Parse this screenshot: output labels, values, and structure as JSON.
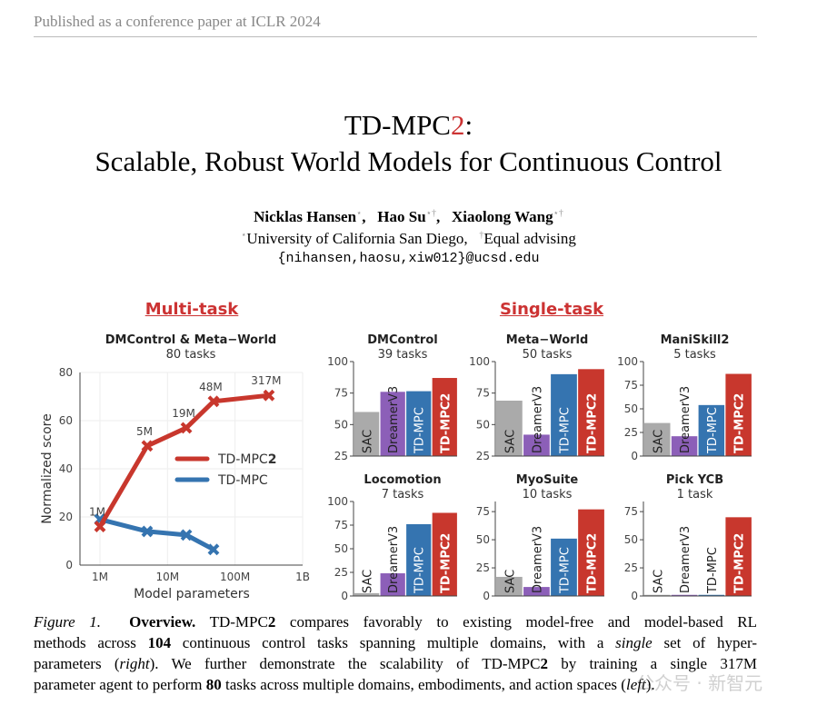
{
  "header": "Published as a conference paper at ICLR 2024",
  "title": {
    "line1_a": "TD-MPC",
    "line1_b": "2",
    "line1_c": ":",
    "line2": "Scalable, Robust World Models for Continuous Control"
  },
  "authors": [
    {
      "name": "Nicklas Hansen",
      "mark": "⋆"
    },
    {
      "name": "Hao Su",
      "mark": "⋆†"
    },
    {
      "name": "Xiaolong Wang",
      "mark": "⋆†"
    }
  ],
  "affiliation": {
    "mark1": "⋆",
    "inst": "University of California San Diego,",
    "mark2": "†",
    "note": "Equal advising"
  },
  "email": "{nihansen,haosu,xiw012}@ucsd.edu",
  "sections": {
    "multi": "Multi-task",
    "single": "Single-task"
  },
  "colors": {
    "TD-MPC2": "#c8372d",
    "TD-MPC": "#3574b0",
    "DreamerV3": "#8c5fb8",
    "SAC": "#aaaaaa",
    "accent": "#c33333"
  },
  "chart_data": [
    {
      "type": "line",
      "title": "DMControl & Meta−World",
      "subtitle": "80 tasks",
      "xlabel": "Model parameters",
      "ylabel": "Normalized score",
      "xscale": "log",
      "xlim": [
        500000,
        1000000000
      ],
      "ylim": [
        0,
        80
      ],
      "grid": true,
      "legend": "center-right",
      "xticks": [
        {
          "v": 1000000,
          "label": "1M"
        },
        {
          "v": 10000000,
          "label": "10M"
        },
        {
          "v": 100000000,
          "label": "100M"
        },
        {
          "v": 1000000000,
          "label": "1B"
        }
      ],
      "yticks": [
        0,
        20,
        40,
        60,
        80
      ],
      "series": [
        {
          "name": "TD-MPC2",
          "color": "#c8372d",
          "x": [
            1000000,
            5000000,
            19000000,
            48000000,
            317000000
          ],
          "y": [
            16,
            49.5,
            57,
            68,
            70.5
          ],
          "labels": [
            "1M",
            "5M",
            "19M",
            "48M",
            "317M"
          ]
        },
        {
          "name": "TD-MPC",
          "color": "#3574b0",
          "x": [
            1000000,
            5000000,
            19000000,
            48000000
          ],
          "y": [
            19,
            14,
            12.5,
            6.5
          ]
        }
      ]
    },
    {
      "type": "bar",
      "title": "DMControl",
      "subtitle": "39 tasks",
      "categories": [
        "SAC",
        "DreamerV3",
        "TD-MPC",
        "TD-MPC2"
      ],
      "values": [
        60,
        76,
        76.5,
        87
      ],
      "ylim": [
        25,
        100
      ],
      "yticks": [
        25,
        50,
        75,
        100
      ]
    },
    {
      "type": "bar",
      "title": "Meta−World",
      "subtitle": "50 tasks",
      "categories": [
        "SAC",
        "DreamerV3",
        "TD-MPC",
        "TD-MPC2"
      ],
      "values": [
        69,
        42,
        90,
        94
      ],
      "ylim": [
        25,
        100
      ],
      "yticks": [
        25,
        50,
        75,
        100
      ]
    },
    {
      "type": "bar",
      "title": "ManiSkill2",
      "subtitle": "5 tasks",
      "categories": [
        "SAC",
        "DreamerV3",
        "TD-MPC",
        "TD-MPC2"
      ],
      "values": [
        35,
        21,
        54,
        87
      ],
      "ylim": [
        0,
        100
      ],
      "yticks": [
        0,
        25,
        50,
        75,
        100
      ]
    },
    {
      "type": "bar",
      "title": "Locomotion",
      "subtitle": "7 tasks",
      "categories": [
        "SAC",
        "DreamerV3",
        "TD-MPC",
        "TD-MPC2"
      ],
      "values": [
        3,
        24,
        76,
        88
      ],
      "ylim": [
        0,
        100
      ],
      "yticks": [
        0,
        25,
        50,
        75,
        100
      ]
    },
    {
      "type": "bar",
      "title": "MyoSuite",
      "subtitle": "10 tasks",
      "categories": [
        "SAC",
        "DreamerV3",
        "TD-MPC",
        "TD-MPC2"
      ],
      "values": [
        17,
        8,
        51,
        77
      ],
      "ylim": [
        0,
        84
      ],
      "yticks": [
        0,
        25,
        50,
        75
      ]
    },
    {
      "type": "bar",
      "title": "Pick YCB",
      "subtitle": "1 task",
      "categories": [
        "SAC",
        "DreamerV3",
        "TD-MPC",
        "TD-MPC2"
      ],
      "values": [
        1,
        1,
        1,
        70
      ],
      "ylim": [
        0,
        84
      ],
      "yticks": [
        0,
        25,
        50,
        75
      ]
    }
  ],
  "caption": {
    "parts": [
      "Figure 1.",
      "Overview.",
      "TD-MPC",
      "2",
      " compares favorably to existing model-free and model-based RL",
      "methods across ",
      "104",
      " continuous control tasks spanning multiple domains, with a ",
      "single",
      " set of hyper-",
      "parameters (",
      "right",
      "). We further demonstrate the scalability of TD-MPC",
      "2",
      " by training a single 317M",
      "parameter agent to perform ",
      "80",
      " tasks across multiple domains, embodiments, and action spaces (",
      "left",
      ")."
    ]
  },
  "watermark": "公众号 · 新智元"
}
